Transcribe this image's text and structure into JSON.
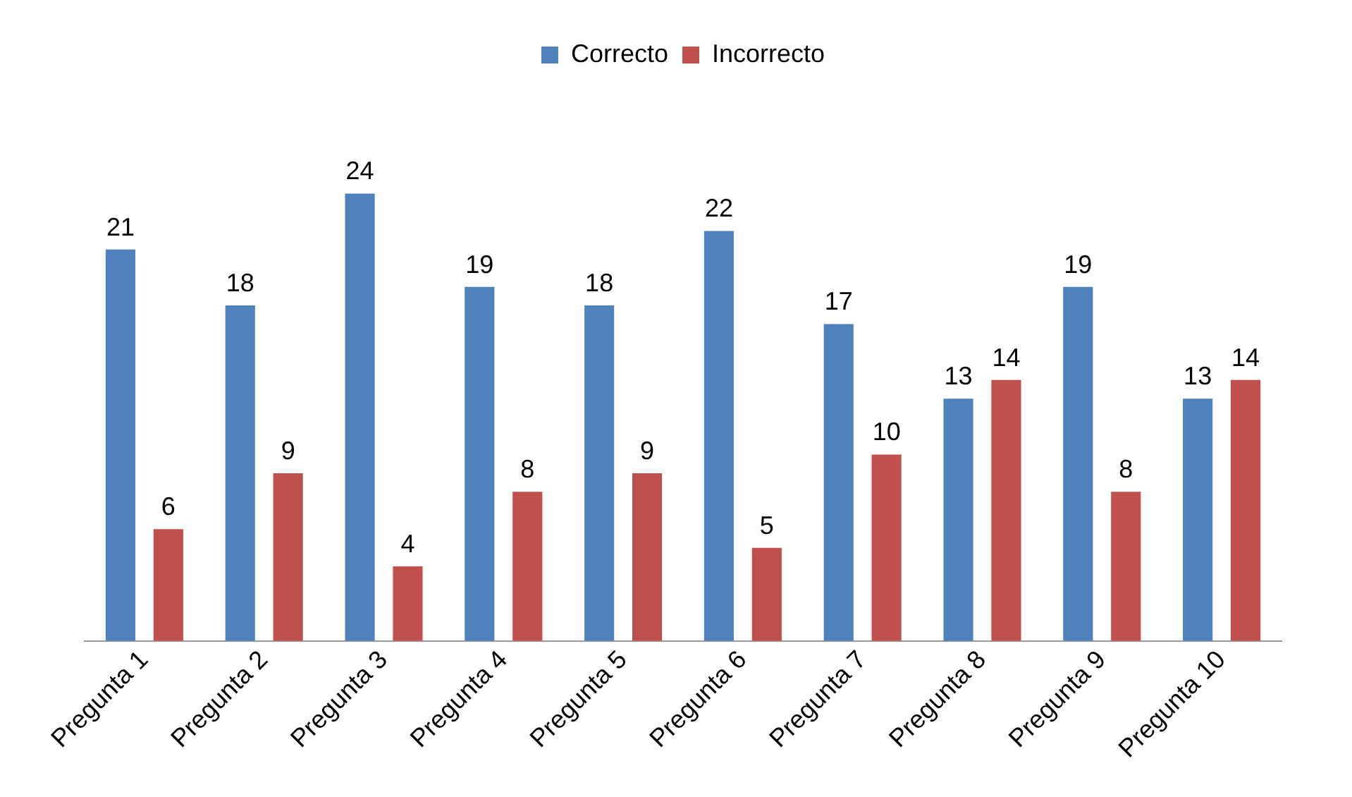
{
  "chart_data": {
    "type": "bar",
    "categories": [
      "Pregunta 1",
      "Pregunta 2",
      "Pregunta 3",
      "Pregunta 4",
      "Pregunta 5",
      "Pregunta 6",
      "Pregunta 7",
      "Pregunta 8",
      "Pregunta 9",
      "Pregunta 10"
    ],
    "series": [
      {
        "name": "Correcto",
        "color": "#4f81bd",
        "values": [
          21,
          18,
          24,
          19,
          18,
          22,
          17,
          13,
          19,
          13
        ]
      },
      {
        "name": "Incorrecto",
        "color": "#c0504d",
        "values": [
          6,
          9,
          4,
          8,
          9,
          5,
          10,
          14,
          8,
          14
        ]
      }
    ],
    "data_labels": true,
    "legend": "top",
    "grid": false,
    "tick_labels": "x"
  }
}
